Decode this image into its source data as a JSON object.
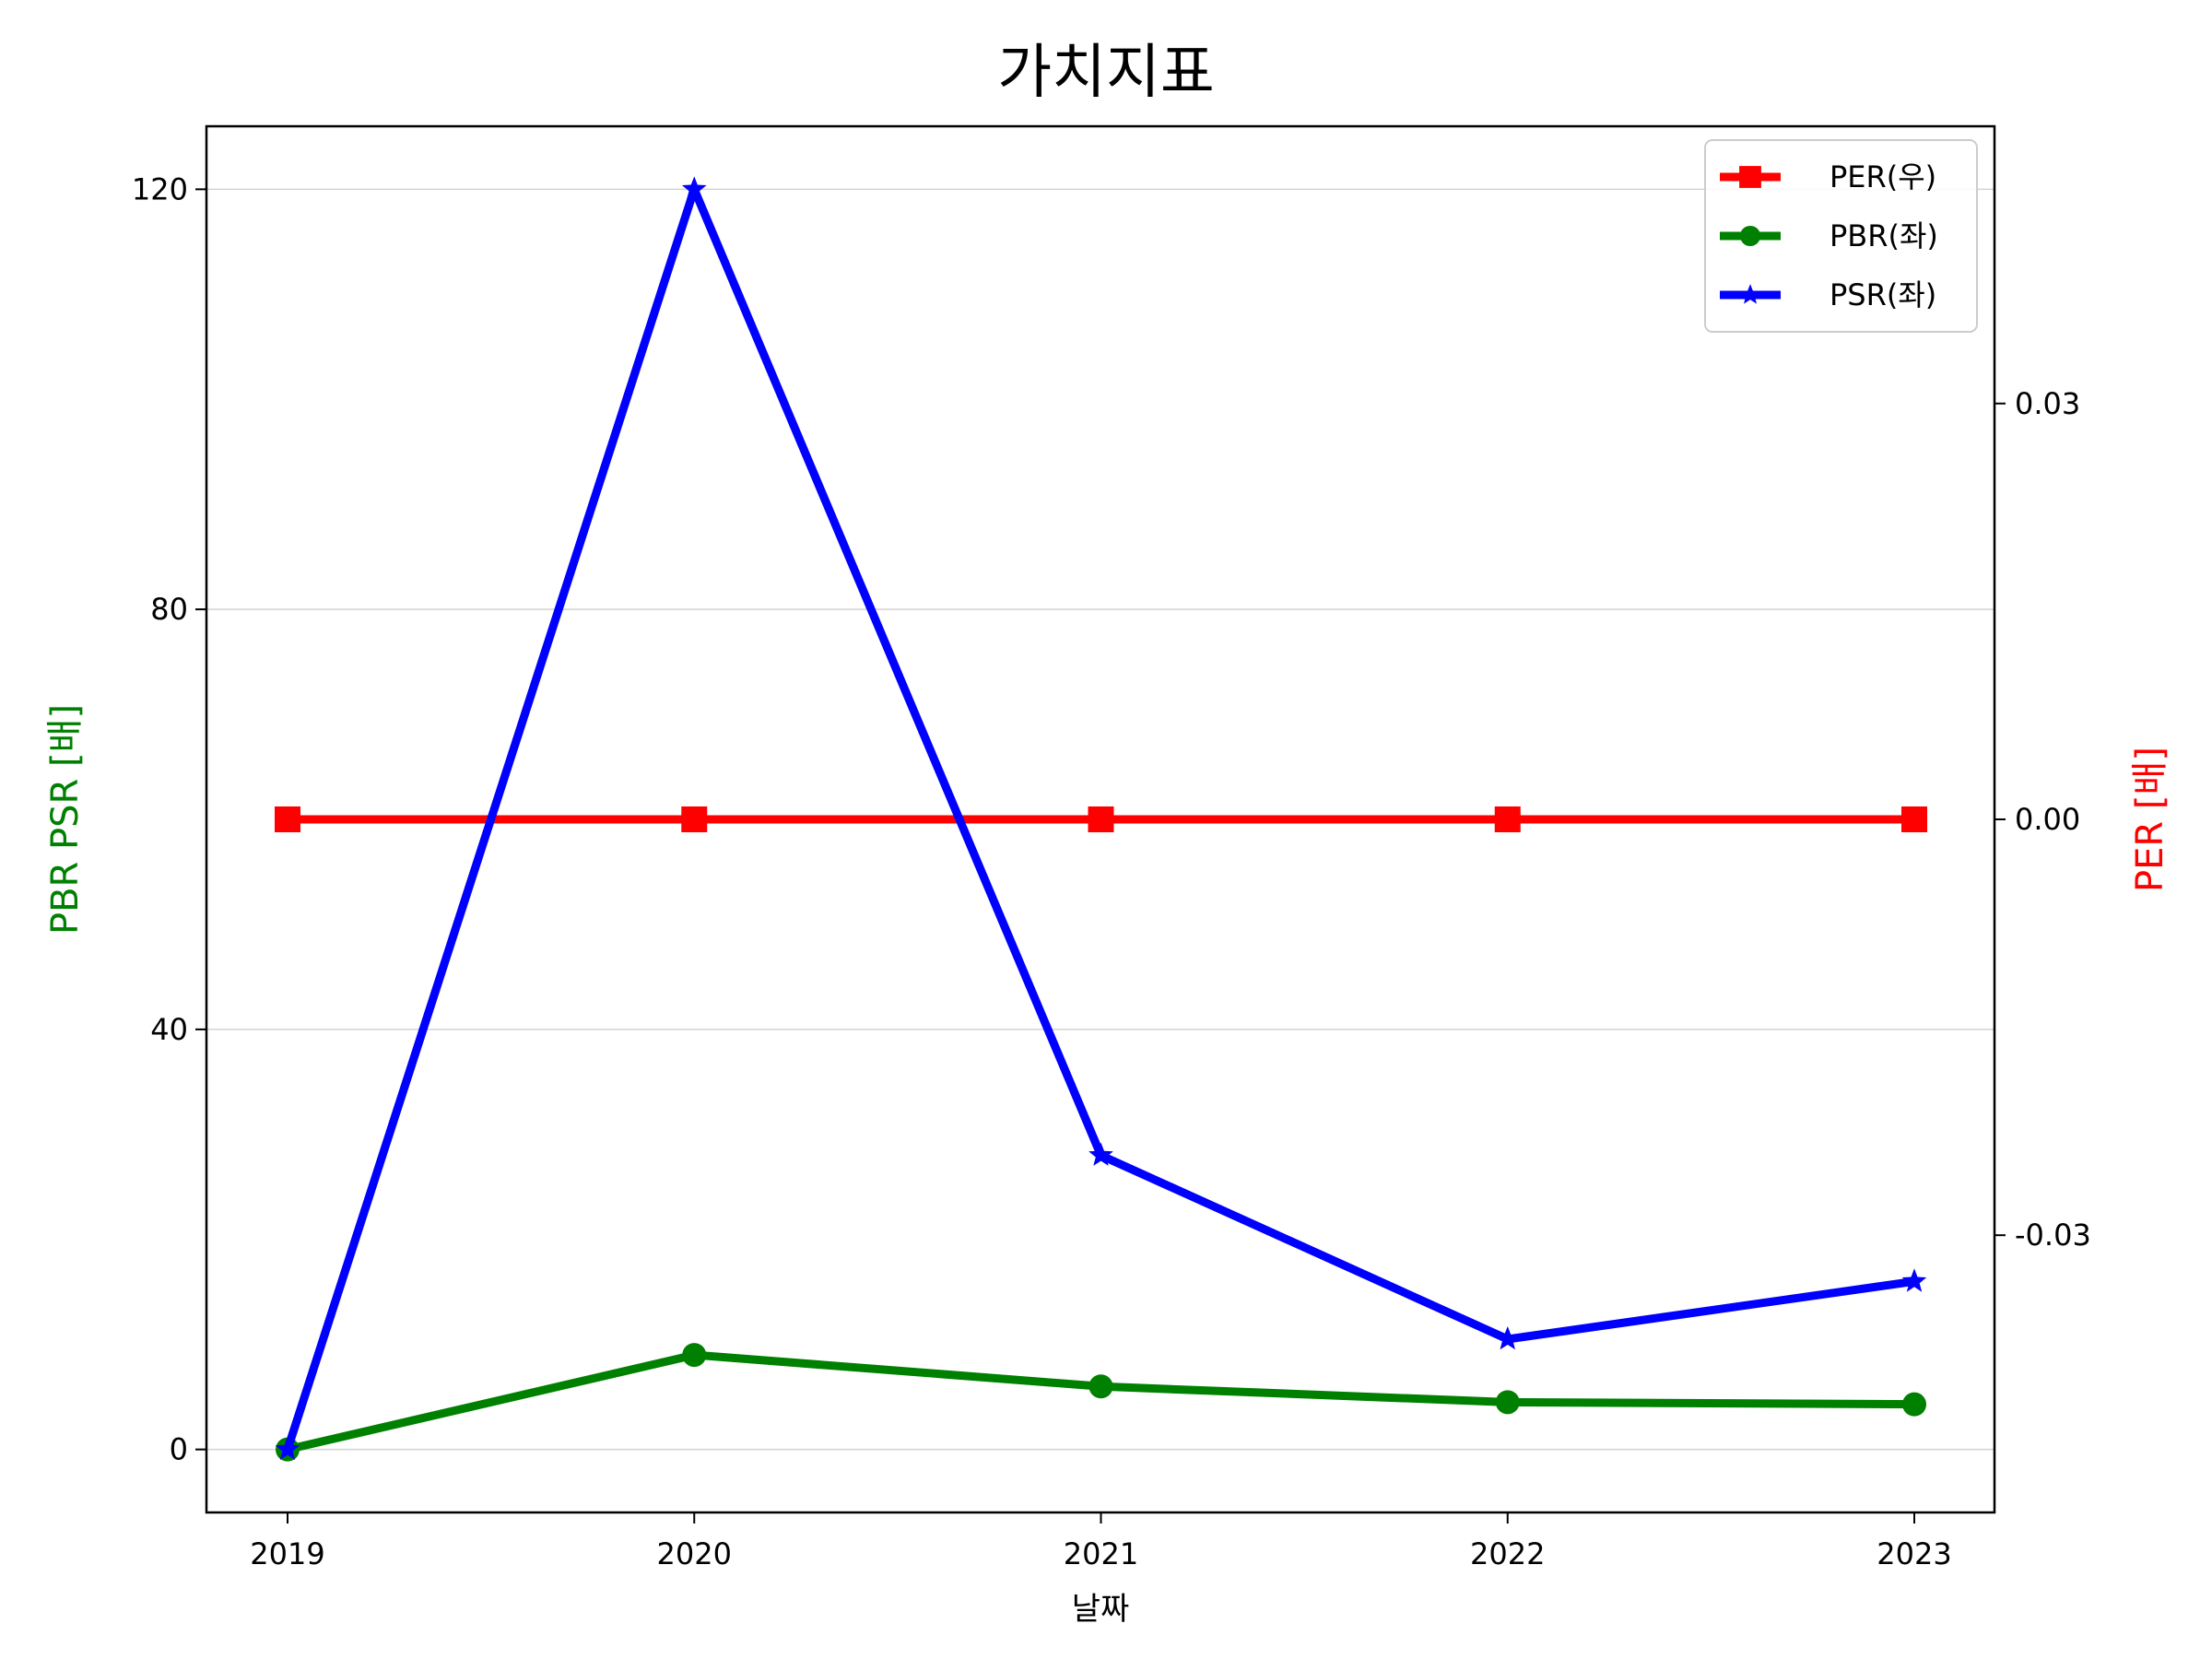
{
  "chart_data": {
    "type": "line",
    "title": "가치지표",
    "xlabel": "날짜",
    "ylabel_left": "PBR PSR [배]",
    "ylabel_right": "PER [배]",
    "categories": [
      "2019",
      "2020",
      "2021",
      "2022",
      "2023"
    ],
    "ylim_left": [
      -6,
      126
    ],
    "yticks_left": [
      0,
      40,
      80,
      120
    ],
    "yticks_left_labels": [
      "0",
      "40",
      "80",
      "120"
    ],
    "ylim_right": [
      -0.05,
      0.05
    ],
    "yticks_right": [
      0.03,
      0.0,
      -0.03
    ],
    "yticks_right_labels": [
      "0.03",
      "0.00",
      "-0.03"
    ],
    "grid": "horizontal",
    "legend_position": "top-right",
    "series": [
      {
        "name": "PER(우)",
        "axis": "right",
        "color": "#ff0000",
        "marker": "square",
        "values": [
          0,
          0,
          0,
          0,
          0
        ]
      },
      {
        "name": "PBR(좌)",
        "axis": "left",
        "color": "#008000",
        "marker": "circle",
        "values": [
          0,
          9,
          6,
          4.5,
          4.3
        ]
      },
      {
        "name": "PSR(좌)",
        "axis": "left",
        "color": "#0000ff",
        "marker": "star",
        "values": [
          0,
          120,
          28,
          10.5,
          16
        ]
      }
    ],
    "colors": {
      "left_label": "#008000",
      "right_label": "#ff0000",
      "grid": "#d3d3d3",
      "axis": "#000000"
    }
  }
}
